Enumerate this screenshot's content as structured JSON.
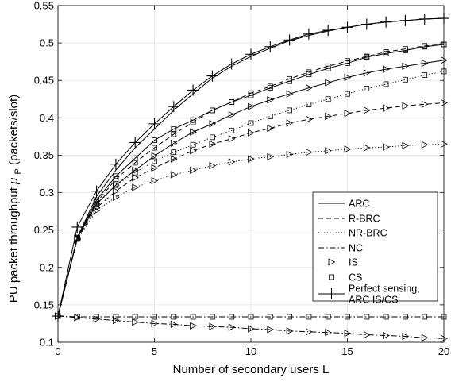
{
  "chart_data": {
    "type": "line",
    "title": "",
    "xlabel": "Number of secondary users L",
    "ylabel": {
      "main": "PU packet throughput ",
      "symbol": "μ",
      "subscript": "P",
      "unit": " (packets/slot)"
    },
    "xlim": [
      0,
      20
    ],
    "ylim": [
      0.1,
      0.55
    ],
    "xticks": [
      0,
      5,
      10,
      15,
      20
    ],
    "yticks": [
      0.1,
      0.15,
      0.2,
      0.25,
      0.3,
      0.35,
      0.4,
      0.45,
      0.5,
      0.55
    ],
    "grid": true,
    "legend_position": "center-right",
    "legend": [
      {
        "label": "ARC",
        "line": "solid",
        "marker": "none"
      },
      {
        "label": "R-BRC",
        "line": "dashed",
        "marker": "none"
      },
      {
        "label": "NR-BRC",
        "line": "dotted",
        "marker": "none"
      },
      {
        "label": "NC",
        "line": "dashdot",
        "marker": "none"
      },
      {
        "label": "IS",
        "line": "none",
        "marker": "triangle-right"
      },
      {
        "label": "CS",
        "line": "none",
        "marker": "square"
      },
      {
        "label": [
          "Perfect sensing,",
          "ARC IS/CS"
        ],
        "line": "solid",
        "marker": "plus"
      }
    ],
    "x": [
      0,
      1,
      2,
      3,
      4,
      5,
      6,
      7,
      8,
      9,
      10,
      11,
      12,
      13,
      14,
      15,
      16,
      17,
      18,
      19,
      20
    ],
    "series": [
      {
        "line": "solid",
        "marker": "square",
        "values": [
          0.135,
          0.24,
          0.29,
          0.322,
          0.346,
          0.37,
          0.385,
          0.397,
          0.41,
          0.421,
          0.43,
          0.44,
          0.449,
          0.458,
          0.466,
          0.473,
          0.481,
          0.486,
          0.49,
          0.495,
          0.498
        ]
      },
      {
        "line": "solid",
        "marker": "triangle-right",
        "values": [
          0.135,
          0.239,
          0.285,
          0.31,
          0.33,
          0.349,
          0.366,
          0.381,
          0.392,
          0.404,
          0.415,
          0.424,
          0.432,
          0.44,
          0.447,
          0.454,
          0.46,
          0.465,
          0.469,
          0.473,
          0.477
        ]
      },
      {
        "line": "dashed",
        "marker": "square",
        "values": [
          0.135,
          0.239,
          0.287,
          0.318,
          0.34,
          0.36,
          0.378,
          0.394,
          0.41,
          0.421,
          0.433,
          0.442,
          0.452,
          0.461,
          0.469,
          0.476,
          0.482,
          0.488,
          0.492,
          0.496,
          0.498
        ]
      },
      {
        "line": "dashed",
        "marker": "triangle-right",
        "values": [
          0.135,
          0.238,
          0.28,
          0.302,
          0.32,
          0.333,
          0.345,
          0.356,
          0.365,
          0.372,
          0.38,
          0.386,
          0.393,
          0.398,
          0.402,
          0.406,
          0.41,
          0.413,
          0.416,
          0.418,
          0.42
        ]
      },
      {
        "line": "dotted",
        "marker": "square",
        "values": [
          0.135,
          0.238,
          0.284,
          0.31,
          0.327,
          0.342,
          0.354,
          0.364,
          0.374,
          0.383,
          0.393,
          0.402,
          0.41,
          0.418,
          0.425,
          0.432,
          0.439,
          0.445,
          0.451,
          0.457,
          0.462
        ]
      },
      {
        "line": "dotted",
        "marker": "triangle-right",
        "values": [
          0.135,
          0.237,
          0.276,
          0.294,
          0.307,
          0.316,
          0.324,
          0.33,
          0.336,
          0.341,
          0.345,
          0.348,
          0.351,
          0.354,
          0.356,
          0.358,
          0.36,
          0.361,
          0.363,
          0.364,
          0.365
        ]
      },
      {
        "line": "dashdot",
        "marker": "square",
        "values": [
          0.135,
          0.134,
          0.134,
          0.134,
          0.134,
          0.134,
          0.134,
          0.134,
          0.134,
          0.134,
          0.134,
          0.134,
          0.134,
          0.134,
          0.134,
          0.134,
          0.134,
          0.134,
          0.134,
          0.134,
          0.134
        ]
      },
      {
        "line": "dashdot",
        "marker": "triangle-right",
        "values": [
          0.135,
          0.133,
          0.131,
          0.129,
          0.127,
          0.125,
          0.124,
          0.122,
          0.121,
          0.12,
          0.118,
          0.117,
          0.115,
          0.114,
          0.113,
          0.112,
          0.11,
          0.109,
          0.108,
          0.106,
          0.105
        ]
      },
      {
        "line": "solid",
        "marker": "plus",
        "values": [
          0.135,
          0.254,
          0.302,
          0.338,
          0.367,
          0.392,
          0.415,
          0.437,
          0.456,
          0.472,
          0.485,
          0.495,
          0.504,
          0.512,
          0.517,
          0.521,
          0.525,
          0.528,
          0.53,
          0.532,
          0.533
        ]
      },
      {
        "line": "solid",
        "marker": "none",
        "values": [
          0.135,
          0.24,
          0.295,
          0.33,
          0.36,
          0.385,
          0.41,
          0.432,
          0.453,
          0.469,
          0.482,
          0.493,
          0.503,
          0.51,
          0.516,
          0.521,
          0.525,
          0.528,
          0.53,
          0.532,
          0.533
        ]
      }
    ]
  }
}
